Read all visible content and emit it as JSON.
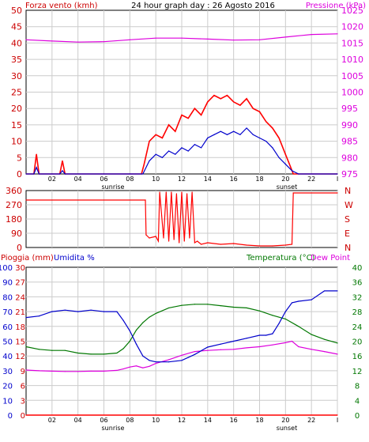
{
  "header": {
    "left_label": "Forza vento (kmh)",
    "title": "24 hour graph day : 26 Agosto 2016",
    "right_label": "Pressione (kPa)"
  },
  "colors": {
    "wind_gust": "#ff0000",
    "wind_avg": "#0000cc",
    "pressure": "#dd00dd",
    "direction": "#ff0000",
    "rain": "#ff0000",
    "humidity": "#0000cc",
    "temperature": "#007700",
    "dewpoint": "#dd00dd",
    "axis_red": "#cc0000",
    "axis_green": "#007700",
    "grid": "#cccccc",
    "frame": "#000000"
  },
  "x_ticks": [
    "02",
    "04",
    "06",
    "08",
    "10",
    "12",
    "14",
    "16",
    "18",
    "20",
    "22",
    "I"
  ],
  "x_tick_hours": [
    2,
    4,
    6,
    8,
    10,
    12,
    14,
    16,
    18,
    20,
    22,
    24
  ],
  "sun": {
    "sunrise_label": "sunrise",
    "sunset_label": "sunset",
    "sunrise_hour": 6.7,
    "sunset_hour": 20.1
  },
  "chart_data": [
    {
      "type": "line",
      "x_unit": "hour of day",
      "y_left_ticks": [
        "0",
        "5",
        "10",
        "15",
        "20",
        "25",
        "30",
        "35",
        "40",
        "45",
        "50"
      ],
      "y_left_range": [
        0,
        50
      ],
      "y_right_ticks": [
        "975",
        "980",
        "985",
        "990",
        "995",
        "1000",
        "1005",
        "1010",
        "1015",
        "1020",
        "1025"
      ],
      "y_right_range": [
        975,
        1025
      ],
      "series": [
        {
          "name": "Forza vento (kmh)",
          "axis": "left",
          "color": "#ff0000",
          "x": [
            0,
            0.6,
            0.8,
            1,
            2,
            2.6,
            2.8,
            3,
            6,
            8,
            8.9,
            9.1,
            9.5,
            10,
            10.5,
            11,
            11.5,
            12,
            12.5,
            13,
            13.5,
            14,
            14.5,
            15,
            15.5,
            16,
            16.5,
            17,
            17.5,
            18,
            18.5,
            19,
            19.5,
            20,
            20.3,
            20.6,
            21,
            24
          ],
          "y": [
            0,
            0,
            6,
            0,
            0,
            0,
            4,
            0,
            0,
            0,
            0,
            3,
            10,
            12,
            11,
            15,
            13,
            18,
            17,
            20,
            18,
            22,
            24,
            23,
            24,
            22,
            21,
            23,
            20,
            19,
            16,
            14,
            11,
            6,
            3,
            0,
            0,
            0
          ]
        },
        {
          "name": "Vento medio",
          "axis": "left",
          "color": "#0000cc",
          "x": [
            0,
            0.6,
            0.8,
            1,
            2,
            2.6,
            2.8,
            3,
            6,
            8,
            9,
            9.5,
            10,
            10.5,
            11,
            11.5,
            12,
            12.5,
            13,
            13.5,
            14,
            14.5,
            15,
            15.5,
            16,
            16.5,
            17,
            17.5,
            18,
            18.5,
            19,
            19.5,
            20,
            20.5,
            21,
            24
          ],
          "y": [
            0,
            0,
            2,
            0,
            0,
            0,
            1,
            0,
            0,
            0,
            0,
            4,
            6,
            5,
            7,
            6,
            8,
            7,
            9,
            8,
            11,
            12,
            13,
            12,
            13,
            12,
            14,
            12,
            11,
            10,
            8,
            5,
            3,
            1,
            0,
            0
          ]
        },
        {
          "name": "Pressione (kPa)",
          "axis": "right",
          "color": "#dd00dd",
          "x": [
            0,
            2,
            4,
            6,
            8,
            10,
            12,
            14,
            16,
            18,
            20,
            22,
            24
          ],
          "y": [
            1016.0,
            1015.6,
            1015.3,
            1015.4,
            1016.0,
            1016.5,
            1016.5,
            1016.2,
            1015.9,
            1016.0,
            1016.8,
            1017.6,
            1017.8
          ]
        }
      ]
    },
    {
      "type": "line",
      "x_unit": "hour of day",
      "y_left_ticks": [
        "360",
        "270",
        "180",
        "90",
        "0"
      ],
      "y_left_range": [
        0,
        360
      ],
      "y_right_ticks": [
        "N",
        "W",
        "S",
        "E",
        "N"
      ],
      "series": [
        {
          "name": "Direzione vento",
          "axis": "left",
          "color": "#ff0000",
          "x": [
            0,
            9.2,
            9.25,
            9.5,
            10,
            10.2,
            10.3,
            10.6,
            10.8,
            11.0,
            11.2,
            11.4,
            11.6,
            11.8,
            12.0,
            12.2,
            12.4,
            12.6,
            12.8,
            13.0,
            13.2,
            13.5,
            14,
            15,
            16,
            17,
            18,
            19,
            20,
            20.5,
            20.6,
            24
          ],
          "y": [
            300,
            300,
            80,
            60,
            70,
            40,
            350,
            60,
            350,
            40,
            350,
            50,
            340,
            30,
            350,
            40,
            340,
            60,
            350,
            30,
            40,
            20,
            30,
            20,
            25,
            15,
            10,
            10,
            15,
            20,
            345,
            345
          ]
        }
      ]
    },
    {
      "type": "line",
      "x_unit": "hour of day",
      "left_label_rain": "Pioggia (mm)",
      "left_label_hum": "Umidita %",
      "right_label_temp": "Temperatura (°C)",
      "right_label_dew": "Dew Point",
      "y_rain_ticks": [
        "30",
        "27",
        "24",
        "21",
        "18",
        "15",
        "12",
        "9",
        "6",
        "3",
        "0"
      ],
      "y_rain_range": [
        0,
        30
      ],
      "y_hum_ticks": [
        "100",
        "90",
        "80",
        "70",
        "60",
        "50",
        "40",
        "30",
        "20",
        "10",
        "0"
      ],
      "y_hum_range": [
        0,
        100
      ],
      "y_temp_ticks": [
        "40",
        "36",
        "32",
        "28",
        "24",
        "20",
        "16",
        "12",
        "8",
        "4",
        "0"
      ],
      "y_temp_range": [
        0,
        40
      ],
      "series": [
        {
          "name": "Umidita %",
          "axis": "humidity",
          "color": "#0000cc",
          "x": [
            0,
            1,
            2,
            3,
            4,
            5,
            6,
            7,
            7.5,
            8,
            8.5,
            9,
            9.5,
            10,
            11,
            12,
            12.5,
            13,
            14,
            15,
            16,
            17,
            18,
            18.5,
            19,
            19.5,
            20,
            20.5,
            21,
            22,
            23,
            24
          ],
          "y": [
            66,
            67,
            70,
            71,
            70,
            71,
            70,
            70,
            64,
            57,
            48,
            40,
            37,
            36,
            36,
            37,
            39,
            41,
            46,
            48,
            50,
            52,
            54,
            54,
            55,
            62,
            70,
            76,
            77,
            78,
            84,
            84
          ]
        },
        {
          "name": "Temperatura (°C)",
          "axis": "temperature",
          "color": "#007700",
          "x": [
            0,
            1,
            2,
            3,
            4,
            5,
            6,
            7,
            7.5,
            8,
            8.5,
            9,
            9.5,
            10,
            11,
            12,
            13,
            14,
            15,
            16,
            17,
            18,
            19,
            20,
            21,
            22,
            23,
            24
          ],
          "y": [
            18.5,
            17.8,
            17.5,
            17.5,
            16.8,
            16.5,
            16.5,
            16.8,
            18,
            20,
            23,
            25,
            26.5,
            27.5,
            29,
            29.7,
            30,
            30,
            29.6,
            29.2,
            29,
            28.2,
            27,
            26,
            24,
            21.8,
            20.5,
            19.5
          ]
        },
        {
          "name": "Dew Point",
          "axis": "temperature",
          "color": "#dd00dd",
          "x": [
            0,
            1,
            2,
            3,
            4,
            5,
            6,
            7,
            7.5,
            8,
            8.5,
            9,
            9.5,
            10,
            11,
            12,
            13,
            14,
            15,
            16,
            17,
            18,
            19,
            20,
            20.5,
            21,
            22,
            23,
            24
          ],
          "y": [
            12.2,
            12.0,
            11.9,
            11.8,
            11.8,
            11.9,
            11.9,
            12.1,
            12.5,
            13.0,
            13.3,
            12.8,
            13.2,
            14,
            15,
            16.2,
            17.2,
            17.5,
            17.7,
            17.8,
            18.2,
            18.5,
            19.0,
            19.6,
            20.0,
            18.5,
            17.8,
            17.2,
            16.5
          ]
        },
        {
          "name": "Pioggia (mm)",
          "axis": "rain",
          "color": "#ff0000",
          "x": [
            0,
            24
          ],
          "y": [
            0,
            0
          ]
        }
      ]
    }
  ]
}
